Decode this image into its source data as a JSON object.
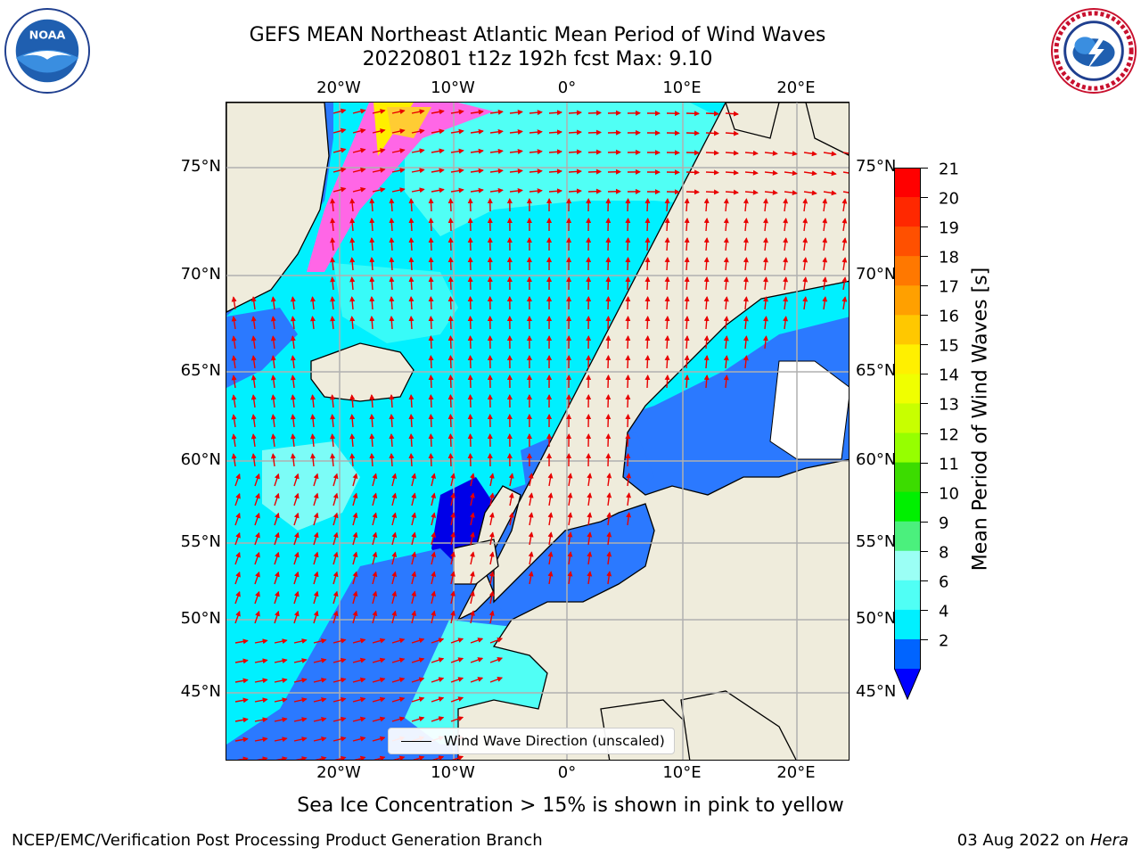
{
  "header": {
    "title_line1": "GEFS MEAN Northeast Atlantic Mean Period of Wind Waves",
    "title_line2": "20220801 t12z 192h fcst   Max: 9.10"
  },
  "logos": {
    "left": "noaa-logo",
    "right": "nws-logo"
  },
  "map": {
    "lon_labels": [
      "20°W",
      "10°W",
      "0°",
      "10°E",
      "20°E"
    ],
    "lat_labels": [
      "75°N",
      "70°N",
      "65°N",
      "60°N",
      "55°N",
      "50°N",
      "45°N"
    ],
    "legend_text": "Wind Wave Direction (unscaled)",
    "colors": {
      "land": "#efecdc",
      "water_low": "#2b79ff",
      "water_mid": "#00f0ff",
      "water_high": "#9bfff5",
      "arrow": "#e80000",
      "ice": "#ff44dd"
    }
  },
  "colorbar": {
    "label": "Mean Period of Wind Waves [s]",
    "ticks": [
      "21",
      "20",
      "19",
      "18",
      "17",
      "16",
      "15",
      "14",
      "13",
      "12",
      "11",
      "10",
      "9",
      "8",
      "6",
      "4",
      "2"
    ],
    "colors": [
      "#ff0000",
      "#ff2800",
      "#ff5000",
      "#ff7800",
      "#ffa000",
      "#ffc800",
      "#fff000",
      "#f0ff00",
      "#c8ff00",
      "#96ff00",
      "#3cdc00",
      "#00f000",
      "#4bf07d",
      "#9bfff5",
      "#50fff5",
      "#00f0ff",
      "#0064ff"
    ],
    "under_color": "#0000ff"
  },
  "notes": {
    "sea_ice": "Sea Ice Concentration > 15% is shown in pink to yellow"
  },
  "footer": {
    "left": "NCEP/EMC/Verification Post Processing Product Generation Branch",
    "right_prefix": "03 Aug 2022 on ",
    "right_italic": "Hera"
  }
}
